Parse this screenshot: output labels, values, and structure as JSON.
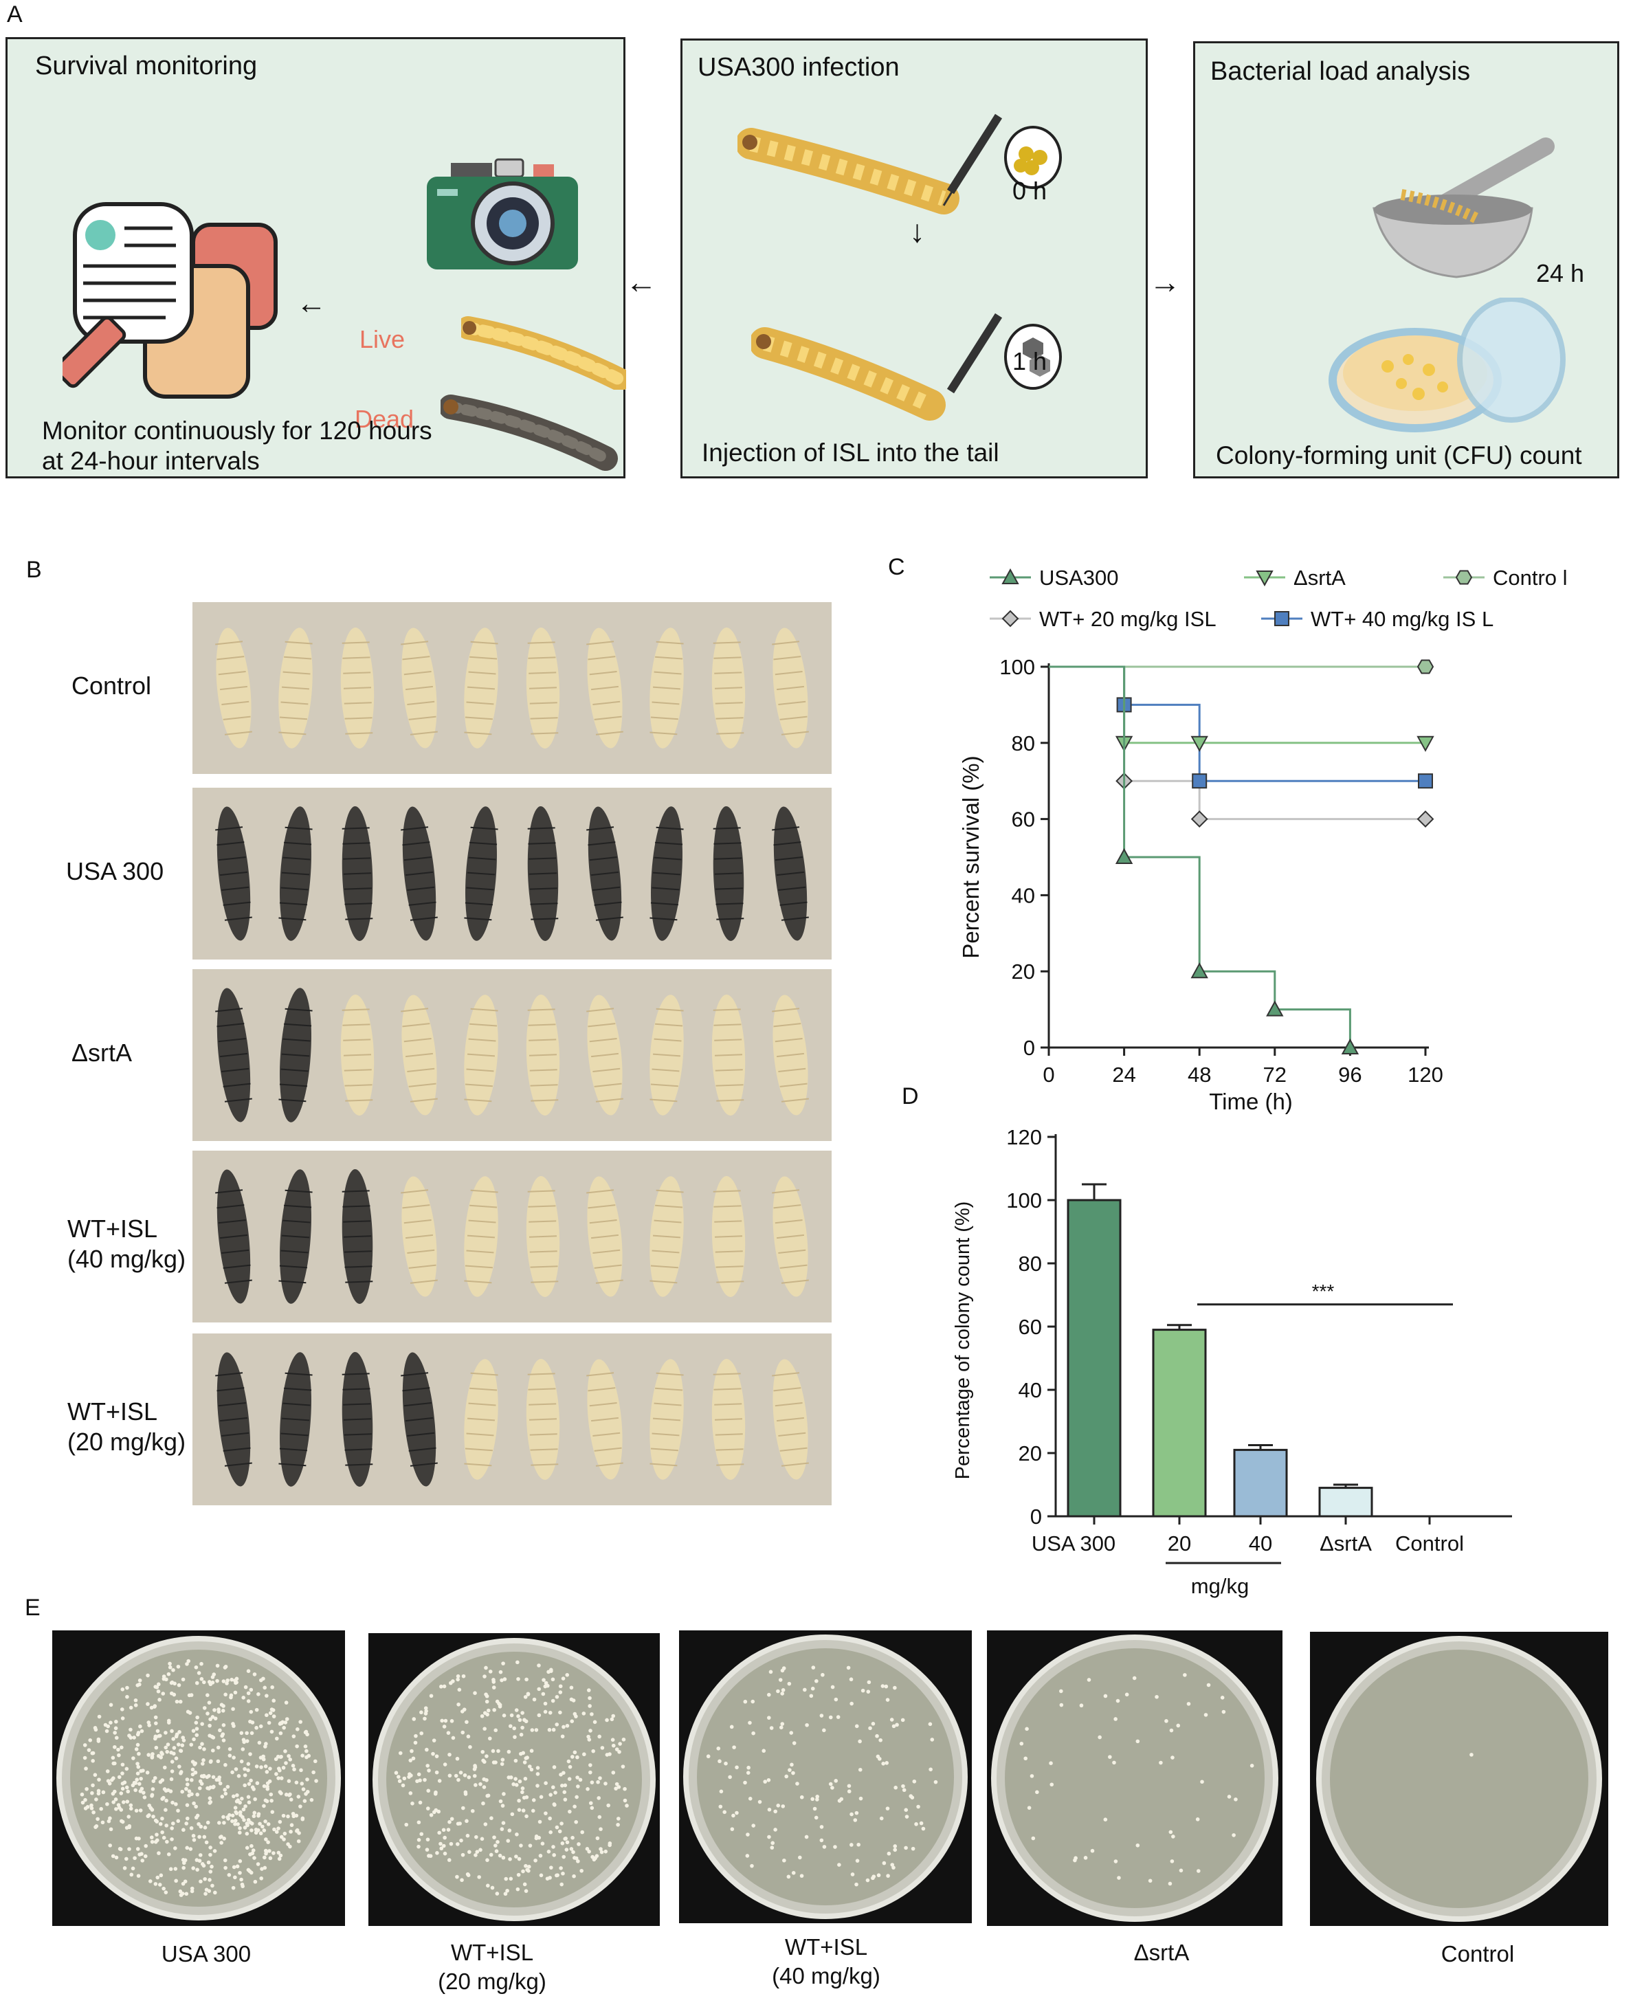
{
  "panels": {
    "a": "A",
    "b": "B",
    "c": "C",
    "d": "D",
    "e": "E"
  },
  "panelA": {
    "survival_title": "Survival monitoring",
    "survival_caption_1": "Monitor continuously for 120 hours",
    "survival_caption_2": "at 24-hour intervals",
    "live": "Live",
    "dead": "Dead",
    "infection_title": "USA300 infection",
    "time0": "0 h",
    "time1": "1 h",
    "infection_caption": "Injection of ISL into the tail",
    "load_title": "Bacterial load analysis",
    "time24": "24 h",
    "load_caption": "Colony-forming unit (CFU) count"
  },
  "panelB": {
    "rows": [
      {
        "label": "Control",
        "tone": "healthy",
        "dark": 0
      },
      {
        "label": "USA 300",
        "tone": "infected",
        "dark": 10
      },
      {
        "label": "ΔsrtA",
        "tone": "mixed",
        "dark": 2
      },
      {
        "label": "WT+ISL",
        "label2": "(40 mg/kg)",
        "tone": "mixed",
        "dark": 3
      },
      {
        "label": "WT+ISL",
        "label2": "(20 mg/kg)",
        "tone": "mixed",
        "dark": 4
      }
    ]
  },
  "panelE": {
    "plates": [
      {
        "label": "USA 300",
        "label2": "",
        "density": 700
      },
      {
        "label": "WT+ISL",
        "label2": "(20 mg/kg)",
        "density": 420
      },
      {
        "label": "WT+ISL",
        "label2": "(40 mg/kg)",
        "density": 160
      },
      {
        "label": "ΔsrtA",
        "label2": "",
        "density": 55
      },
      {
        "label": "Control",
        "label2": "",
        "density": 1
      }
    ]
  },
  "colors": {
    "usa300": "#5b9a73",
    "srtA": "#86c286",
    "control": "#9cc39c",
    "isl20": "#c4c4c4",
    "isl40": "#4f7fbf",
    "barUSA": "#559470",
    "bar20": "#8cc487",
    "bar40": "#9abbd6",
    "barSrt": "#dceef0"
  },
  "chart_data": [
    {
      "type": "line",
      "legend": [
        "USA300",
        "ΔsrtA",
        "Contro l",
        "WT+ 20 mg/kg ISL",
        "WT+ 40 mg/kg IS L"
      ],
      "xlabel": "Time (h)",
      "ylabel": "Percent survival (%)",
      "xlim": [
        0,
        120
      ],
      "ylim": [
        0,
        100
      ],
      "xticks": [
        0,
        24,
        48,
        72,
        96,
        120
      ],
      "yticks": [
        0,
        20,
        40,
        60,
        80,
        100
      ],
      "series": [
        {
          "name": "USA300",
          "x": [
            0,
            24,
            48,
            72,
            96
          ],
          "y": [
            100,
            50,
            20,
            10,
            0
          ],
          "marker": "triangle-up"
        },
        {
          "name": "ΔsrtA",
          "x": [
            0,
            24,
            48,
            120
          ],
          "y": [
            100,
            80,
            80,
            80
          ],
          "marker": "triangle-down"
        },
        {
          "name": "Contro l",
          "x": [
            0,
            120
          ],
          "y": [
            100,
            100
          ],
          "marker": "hexagon"
        },
        {
          "name": "WT+ 20 mg/kg ISL",
          "x": [
            0,
            24,
            48,
            120
          ],
          "y": [
            100,
            70,
            60,
            60
          ],
          "marker": "diamond"
        },
        {
          "name": "WT+ 40 mg/kg IS L",
          "x": [
            0,
            24,
            48,
            120
          ],
          "y": [
            100,
            90,
            70,
            70
          ],
          "marker": "square"
        }
      ]
    },
    {
      "type": "bar",
      "categories": [
        "USA 300",
        "20",
        "40",
        "ΔsrtA",
        "Control"
      ],
      "group_label": "mg/kg",
      "values": [
        100,
        59,
        21,
        9,
        0
      ],
      "errors": [
        5,
        1.5,
        1.5,
        1,
        0
      ],
      "ylabel": "Percentage of colony count (%)",
      "ylim": [
        0,
        120
      ],
      "yticks": [
        0,
        20,
        40,
        60,
        80,
        100,
        120
      ],
      "annotation": "***"
    }
  ]
}
